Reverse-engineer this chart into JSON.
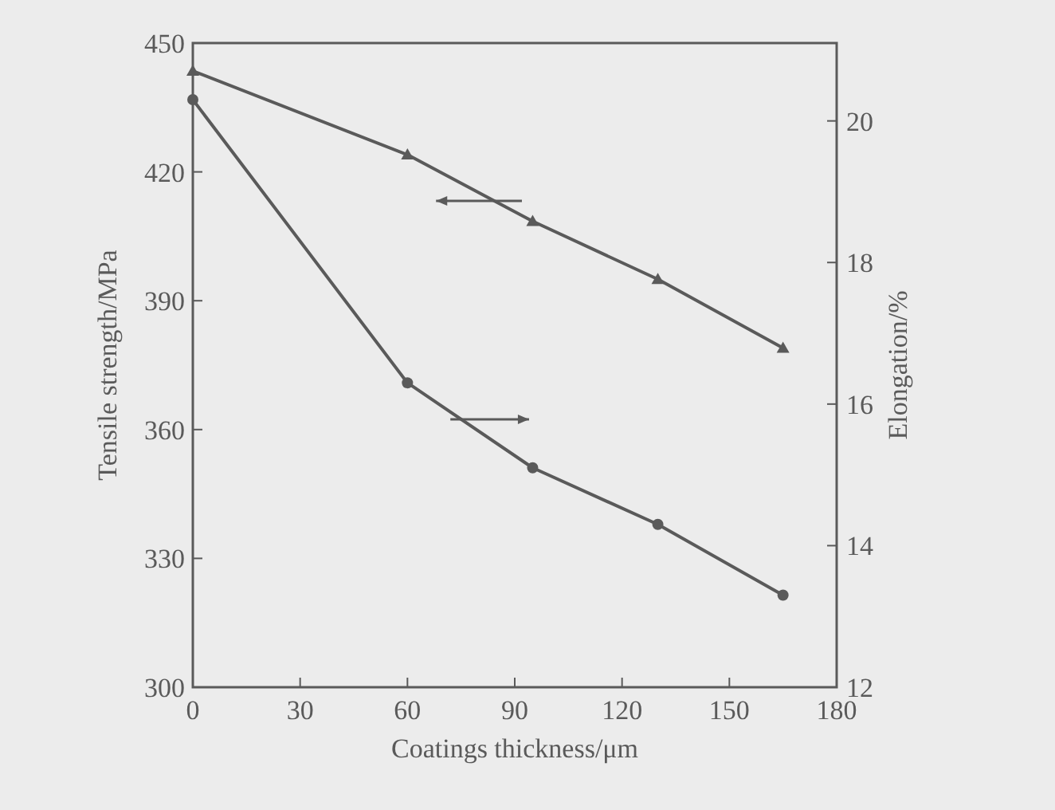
{
  "chart_data": {
    "type": "line",
    "xlabel": "Coatings thickness/μm",
    "ylabel": "Tensile strength/MPa",
    "y2label": "Elongation/%",
    "xlim": [
      0,
      180
    ],
    "xticks": [
      0,
      30,
      60,
      90,
      120,
      150,
      180
    ],
    "ylim": [
      300,
      450
    ],
    "yticks": [
      300,
      330,
      360,
      390,
      420,
      450
    ],
    "y2lim": [
      12,
      21.1
    ],
    "y2ticks": [
      12,
      14,
      16,
      18,
      20
    ],
    "x": [
      0,
      60,
      95,
      130,
      165
    ],
    "grid": false,
    "series": [
      {
        "color": "#5a5a5a",
        "marker": "triangle",
        "values": [
          443.5,
          424,
          408.5,
          395,
          379
        ]
      },
      {
        "color": "#5a5a5a",
        "marker": "circle",
        "axis": "y2",
        "values": [
          20.3,
          16.3,
          15.1,
          14.3,
          13.3
        ]
      }
    ]
  }
}
